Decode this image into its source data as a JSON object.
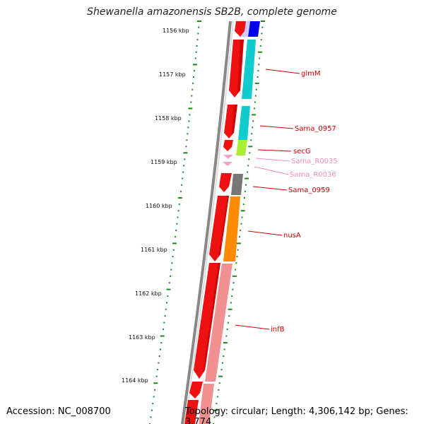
{
  "title": "Shewanella amazonensis SB2B, complete genome",
  "footer": {
    "accession": "Accession: NC_008700",
    "summary": "Topology: circular; Length: 4,306,142 bp; Genes: 3,774"
  },
  "ruler": {
    "labels": [
      "1156 kbp",
      "1157 kbp",
      "1158 kbp",
      "1159 kbp",
      "1160 kbp",
      "1161 kbp",
      "1162 kbp",
      "1163 kbp",
      "1164 kbp"
    ]
  },
  "genes": [
    {
      "label": "glmM",
      "color": "#cc0000"
    },
    {
      "label": "Sama_0957",
      "color": "#cc0000"
    },
    {
      "label": "secG",
      "color": "#cc0000"
    },
    {
      "label": "Sama_R0035",
      "color": "#f08cc0"
    },
    {
      "label": "Sama_R0036",
      "color": "#f08cc0"
    },
    {
      "label": "Sama_0959",
      "color": "#cc0000"
    },
    {
      "label": "nusA",
      "color": "#cc0000"
    },
    {
      "label": "infB",
      "color": "#cc0000"
    }
  ],
  "colors": {
    "strand_red": "#ee1111",
    "cog_blue": "#0000ee",
    "cog_cyan": "#11cccc",
    "cog_lime": "#aaee33",
    "cog_gray": "#777777",
    "cog_orange": "#ff8c00",
    "cog_pink": "#f09090",
    "rna_pink": "#f5a0cc",
    "tick_green": "#1a8a1a",
    "backbone": "#888888"
  }
}
